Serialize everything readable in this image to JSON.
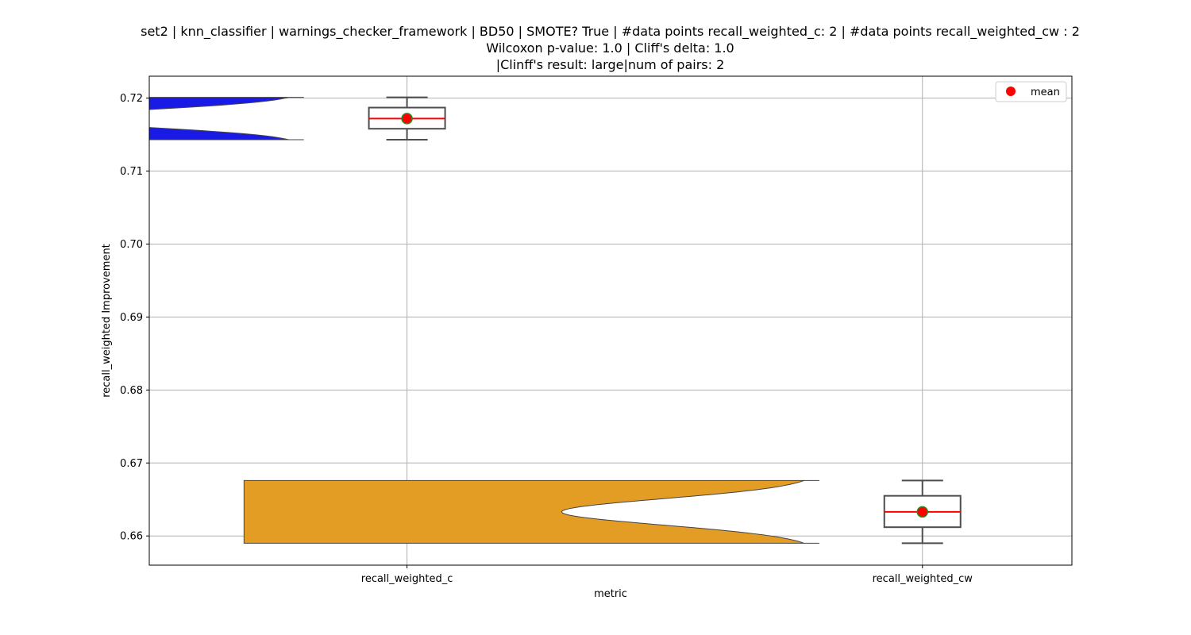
{
  "title_lines": [
    "set2 | knn_classifier | warnings_checker_framework | BD50 | SMOTE? True | #data points recall_weighted_c: 2 | #data points recall_weighted_cw : 2",
    "Wilcoxon p-value: 1.0 | Cliff's delta: 1.0",
    "|Clinff's result: large|num of pairs: 2"
  ],
  "chart_data": {
    "type": "violin+box",
    "xlabel": "metric",
    "ylabel": "recall_weighted Improvement",
    "categories": [
      "recall_weighted_c",
      "recall_weighted_cw"
    ],
    "ylim": [
      0.656,
      0.723
    ],
    "yticks": [
      0.66,
      0.67,
      0.68,
      0.69,
      0.7,
      0.71,
      0.72
    ],
    "ytick_labels": [
      "0.66",
      "0.67",
      "0.68",
      "0.69",
      "0.70",
      "0.71",
      "0.72"
    ],
    "grid": true,
    "legend": {
      "position": "top-right",
      "entries": [
        {
          "label": "mean",
          "color": "#ff0000"
        }
      ]
    },
    "groups": [
      {
        "category": "recall_weighted_c",
        "violin_color": "#1a1ae6",
        "data_min": 0.7143,
        "data_max": 0.7201,
        "density_peak": 0.7172,
        "box": {
          "min": 0.7143,
          "q1": 0.7158,
          "median": 0.7172,
          "q3": 0.7187,
          "max": 0.7201
        },
        "mean": 0.7172
      },
      {
        "category": "recall_weighted_cw",
        "violin_color": "#e39c24",
        "data_min": 0.659,
        "data_max": 0.6676,
        "density_peak": 0.6633,
        "box": {
          "min": 0.659,
          "q1": 0.6612,
          "median": 0.6633,
          "q3": 0.6655,
          "max": 0.6676
        },
        "mean": 0.6633
      }
    ],
    "colors": {
      "median": "#ff0000",
      "mean_fill": "#ff0000",
      "mean_edge": "#228b22",
      "box_edge": "#4d4d4d",
      "grid": "#b0b0b0"
    }
  }
}
